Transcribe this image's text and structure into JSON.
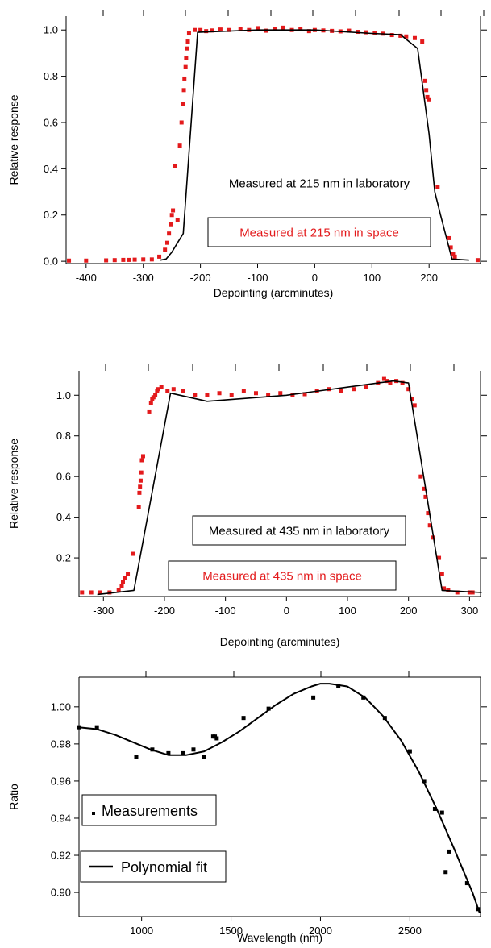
{
  "colors": {
    "space": "#e31a1c",
    "lab": "#000000",
    "measurement": "#000000"
  },
  "chart_data": [
    {
      "type": "scatter",
      "xlabel": "Depointing (arcminutes)",
      "ylabel": "Relative response",
      "xlim": [
        -435,
        290
      ],
      "ylim": [
        -0.01,
        1.06
      ],
      "xticks": [
        -400,
        -300,
        -200,
        -100,
        0,
        100,
        200
      ],
      "yticks": [
        0.0,
        0.2,
        0.4,
        0.6,
        0.8,
        1.0
      ],
      "ytick_labels": [
        "0.0",
        "0.2",
        "0.4",
        "0.6",
        "0.8",
        "1.0"
      ],
      "grid": false,
      "legend_placement": "center-bottom",
      "series": [
        {
          "name": "Measured at 215 nm in space",
          "kind": "points",
          "x": [
            -430,
            -400,
            -365,
            -350,
            -335,
            -325,
            -315,
            -300,
            -285,
            -272,
            -262,
            -258,
            -255,
            -252,
            -250,
            -248,
            -245,
            -240,
            -236,
            -233,
            -231,
            -229,
            -228,
            -226,
            -225,
            -223,
            -222,
            -220,
            -210,
            -200,
            -190,
            -180,
            -165,
            -150,
            -130,
            -115,
            -100,
            -85,
            -70,
            -55,
            -40,
            -25,
            -10,
            0,
            15,
            30,
            45,
            60,
            75,
            90,
            105,
            120,
            135,
            150,
            160,
            175,
            188,
            193,
            195,
            197,
            200,
            215,
            235,
            238,
            242,
            245,
            285
          ],
          "y": [
            0.003,
            0.003,
            0.004,
            0.005,
            0.006,
            0.006,
            0.007,
            0.008,
            0.008,
            0.02,
            0.05,
            0.08,
            0.12,
            0.16,
            0.2,
            0.22,
            0.41,
            0.18,
            0.5,
            0.6,
            0.68,
            0.74,
            0.79,
            0.84,
            0.88,
            0.92,
            0.95,
            0.985,
            1.0,
            1.0,
            0.995,
            0.998,
            1.002,
            1.0,
            1.005,
            1.0,
            1.008,
            0.997,
            1.005,
            1.01,
            1.0,
            1.005,
            0.995,
            1.0,
            0.998,
            0.996,
            0.994,
            0.997,
            0.992,
            0.99,
            0.986,
            0.984,
            0.978,
            0.975,
            0.972,
            0.965,
            0.95,
            0.78,
            0.74,
            0.71,
            0.7,
            0.32,
            0.1,
            0.06,
            0.03,
            0.02,
            0.005
          ]
        },
        {
          "name": "Measured at 215 nm in laboratory",
          "kind": "line",
          "x": [
            -270,
            -260,
            -250,
            -240,
            -230,
            -205,
            -100,
            0,
            100,
            150,
            180,
            200,
            210,
            220,
            240,
            270
          ],
          "y": [
            0.005,
            0.01,
            0.04,
            0.08,
            0.12,
            0.99,
            1.0,
            1.0,
            0.985,
            0.98,
            0.92,
            0.55,
            0.3,
            0.2,
            0.01,
            0.005
          ]
        }
      ]
    },
    {
      "type": "scatter",
      "xlabel": "Depointing (arcminutes)",
      "ylabel": "Relative response",
      "xlim": [
        -340,
        318
      ],
      "ylim": [
        0.01,
        1.12
      ],
      "xticks": [
        -300,
        -200,
        -100,
        0,
        100,
        200,
        300
      ],
      "yticks": [
        0.2,
        0.4,
        0.6,
        0.8,
        1.0
      ],
      "ytick_labels": [
        "0.2",
        "0.4",
        "0.6",
        "0.8",
        "1.0"
      ],
      "grid": false,
      "legend_placement": "center-bottom",
      "series": [
        {
          "name": "Measured at 435 nm in space",
          "kind": "points",
          "x": [
            -335,
            -320,
            -305,
            -290,
            -275,
            -270,
            -268,
            -265,
            -260,
            -252,
            -242,
            -241,
            -240,
            -239,
            -238,
            -237,
            -235,
            -225,
            -222,
            -220,
            -218,
            -215,
            -212,
            -210,
            -205,
            -195,
            -185,
            -170,
            -150,
            -130,
            -110,
            -90,
            -70,
            -50,
            -30,
            -10,
            10,
            30,
            50,
            70,
            90,
            110,
            130,
            150,
            160,
            165,
            170,
            180,
            190,
            200,
            205,
            210,
            220,
            225,
            228,
            232,
            235,
            240,
            250,
            255,
            258,
            265,
            280,
            300,
            305
          ],
          "y": [
            0.03,
            0.03,
            0.03,
            0.03,
            0.04,
            0.06,
            0.08,
            0.1,
            0.12,
            0.22,
            0.45,
            0.52,
            0.55,
            0.58,
            0.62,
            0.68,
            0.7,
            0.92,
            0.96,
            0.98,
            0.99,
            1.0,
            1.02,
            1.03,
            1.04,
            1.02,
            1.03,
            1.02,
            1.0,
            1.0,
            1.01,
            1.0,
            1.02,
            1.01,
            1.0,
            1.01,
            1.0,
            1.005,
            1.02,
            1.03,
            1.02,
            1.03,
            1.04,
            1.06,
            1.08,
            1.07,
            1.06,
            1.07,
            1.06,
            1.03,
            0.98,
            0.95,
            0.6,
            0.54,
            0.5,
            0.42,
            0.36,
            0.3,
            0.2,
            0.12,
            0.05,
            0.04,
            0.03,
            0.03,
            0.03
          ]
        },
        {
          "name": "Measured at 435 nm in laboratory",
          "kind": "line",
          "x": [
            -310,
            -250,
            -190,
            -130,
            0,
            100,
            175,
            200,
            255,
            320
          ],
          "y": [
            0.02,
            0.04,
            1.01,
            0.97,
            1.0,
            1.04,
            1.07,
            1.06,
            0.04,
            0.03
          ]
        }
      ]
    },
    {
      "type": "scatter",
      "xlabel": "Wavelength (nm)",
      "ylabel": "Ratio",
      "xlim": [
        650,
        2895
      ],
      "ylim": [
        0.887,
        1.016
      ],
      "xticks": [
        1000,
        1500,
        2000,
        2500
      ],
      "yticks": [
        0.9,
        0.92,
        0.94,
        0.96,
        0.98,
        1.0
      ],
      "ytick_labels": [
        "0.90",
        "0.92",
        "0.94",
        "0.96",
        "0.98",
        "1.00"
      ],
      "grid": false,
      "legend_placement": "left",
      "series": [
        {
          "name": "Measurements",
          "kind": "points",
          "x": [
            650,
            750,
            970,
            1060,
            1150,
            1230,
            1290,
            1350,
            1400,
            1410,
            1420,
            1570,
            1710,
            1960,
            2100,
            2240,
            2360,
            2500,
            2580,
            2640,
            2680,
            2700,
            2720,
            2820,
            2880
          ],
          "y": [
            0.989,
            0.989,
            0.973,
            0.977,
            0.975,
            0.975,
            0.977,
            0.973,
            0.984,
            0.984,
            0.983,
            0.994,
            0.999,
            1.005,
            1.011,
            1.005,
            0.994,
            0.976,
            0.96,
            0.945,
            0.943,
            0.911,
            0.922,
            0.905,
            0.891
          ]
        },
        {
          "name": "Polynomial fit",
          "kind": "line",
          "x": [
            650,
            750,
            850,
            950,
            1050,
            1150,
            1250,
            1350,
            1450,
            1550,
            1650,
            1750,
            1850,
            1950,
            2000,
            2050,
            2150,
            2250,
            2350,
            2450,
            2550,
            2650,
            2750,
            2850,
            2890
          ],
          "y": [
            0.989,
            0.988,
            0.985,
            0.981,
            0.977,
            0.974,
            0.974,
            0.976,
            0.981,
            0.987,
            0.994,
            1.001,
            1.007,
            1.011,
            1.0125,
            1.0125,
            1.011,
            1.005,
            0.995,
            0.982,
            0.965,
            0.945,
            0.923,
            0.9,
            0.889
          ]
        }
      ]
    }
  ]
}
